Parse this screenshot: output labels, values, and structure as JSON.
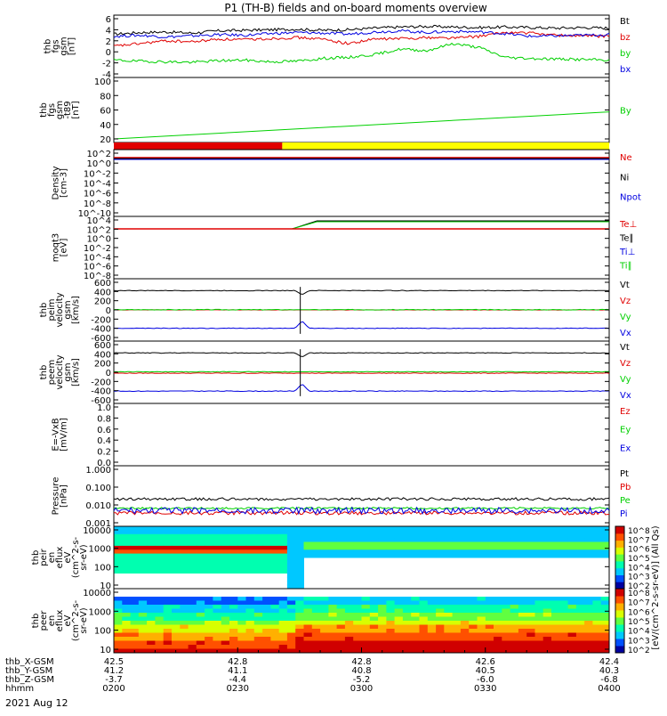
{
  "title": "P1 (TH-B) fields and on-board moments overview",
  "date": "2021 Aug 12",
  "coloring": {
    "black": "#000000",
    "red": "#e00000",
    "green": "#00d000",
    "blue": "#0000e0",
    "yellow": "#ffff00"
  },
  "chart_data": [
    {
      "type": "line",
      "ylabel_lines": [
        "thb",
        "fgs",
        "gsm",
        "[nT]"
      ],
      "ylim": [
        -4,
        6
      ],
      "yticks": [
        "6",
        "4",
        "2",
        "0",
        "-2",
        "-4"
      ],
      "series": [
        {
          "name": "Bt",
          "color": "#000000",
          "values": [
            3.2,
            3.5,
            3.6,
            3.4,
            3.8,
            3.9,
            4.0,
            4.1,
            3.9,
            4.0,
            4.3,
            4.5,
            4.6,
            4.5,
            4.4,
            4.5,
            4.4,
            4.3,
            4.4,
            4.3
          ]
        },
        {
          "name": "bz",
          "color": "#e00000",
          "values": [
            1.0,
            1.5,
            2.0,
            1.8,
            2.3,
            2.2,
            2.4,
            2.6,
            2.3,
            1.5,
            2.3,
            2.4,
            2.6,
            2.5,
            2.8,
            3.5,
            3.4,
            3.0,
            2.9,
            2.8
          ]
        },
        {
          "name": "by",
          "color": "#00d000",
          "values": [
            -1.5,
            -1.7,
            -1.8,
            -1.9,
            -1.6,
            -1.5,
            -1.8,
            -1.7,
            -1.2,
            -1.0,
            -0.5,
            0.5,
            0.2,
            1.5,
            0.8,
            -1.0,
            -1.2,
            -1.3,
            -1.4,
            -1.5
          ]
        },
        {
          "name": "bx",
          "color": "#0000e0",
          "values": [
            2.8,
            3.0,
            2.7,
            2.9,
            3.1,
            3.0,
            3.3,
            3.5,
            3.4,
            3.2,
            3.6,
            3.8,
            3.5,
            3.7,
            3.6,
            3.3,
            2.8,
            2.9,
            3.0,
            3.1
          ]
        }
      ]
    },
    {
      "type": "line",
      "ylabel_lines": [
        "thb",
        "fgs",
        "gsm",
        "-t89",
        "[nT]"
      ],
      "ylim": [
        10,
        100
      ],
      "yticks": [
        "100",
        "80",
        "60",
        "40",
        "20"
      ],
      "series": [
        {
          "name": "By",
          "color": "#00d000",
          "x": [
            0,
            1
          ],
          "values": [
            10,
            52
          ]
        }
      ]
    },
    {
      "type": "bar",
      "segments": [
        {
          "start": 0,
          "end": 0.34,
          "color": "#e00000"
        },
        {
          "start": 0.34,
          "end": 1,
          "color": "#ffff00"
        }
      ]
    },
    {
      "type": "line",
      "ylabel_lines": [
        "Density",
        "[cm-3]"
      ],
      "yticks": [
        "10^2",
        "10^0",
        "10^-2",
        "10^-4",
        "10^-6",
        "10^-8",
        "10^-10"
      ],
      "legend": [
        "Ne",
        "Ni",
        "Npot"
      ]
    },
    {
      "type": "line",
      "ylabel_lines": [
        "moqt3",
        "[eV]"
      ],
      "yticks": [
        "10^4",
        "10^2",
        "10^0",
        "10^-2",
        "10^-4",
        "10^-6",
        "10^-8"
      ],
      "legend": [
        "Te⊥",
        "Te∥",
        "Ti⊥",
        "Ti∥"
      ]
    },
    {
      "type": "line",
      "ylabel_lines": [
        "thb",
        "peim",
        "velocity",
        "gsm",
        "[km/s]"
      ],
      "ylim": [
        -600,
        600
      ],
      "yticks": [
        "600",
        "400",
        "200",
        "0",
        "-200",
        "-400",
        "-600"
      ],
      "series": [
        {
          "name": "Vt",
          "color": "#000000",
          "base": 420
        },
        {
          "name": "Vz",
          "color": "#e00000",
          "base": 0
        },
        {
          "name": "Vy",
          "color": "#00d000",
          "base": 5
        },
        {
          "name": "Vx",
          "color": "#0000e0",
          "base": -400
        }
      ]
    },
    {
      "type": "line",
      "ylabel_lines": [
        "thb",
        "peem",
        "velocity",
        "gsm",
        "[km/s]"
      ],
      "ylim": [
        -600,
        600
      ],
      "yticks": [
        "600",
        "400",
        "200",
        "0",
        "-200",
        "-400",
        "-600"
      ],
      "series": [
        {
          "name": "Vt",
          "color": "#000000",
          "base": 420
        },
        {
          "name": "Vz",
          "color": "#e00000",
          "base": -20
        },
        {
          "name": "Vy",
          "color": "#00d000",
          "base": 10
        },
        {
          "name": "Vx",
          "color": "#0000e0",
          "base": -410
        }
      ]
    },
    {
      "type": "line",
      "ylabel_lines": [
        "E=-VxB",
        "[mV/m]"
      ],
      "yticks": [
        "1.0",
        "0.8",
        "0.6",
        "0.4",
        "0.2",
        "0.0"
      ],
      "legend": [
        "Ez",
        "Ey",
        "Ex"
      ]
    },
    {
      "type": "line",
      "ylabel_lines": [
        "Pressure",
        "[nPa]"
      ],
      "yticks": [
        "1.000",
        "0.100",
        "0.010",
        "0.001"
      ],
      "legend": [
        "Pt",
        "Pb",
        "Pe",
        "Pi"
      ]
    },
    {
      "type": "heatmap",
      "ylabel_lines": [
        "thb",
        "peir",
        "en",
        "eflux",
        "eV",
        "(cm^2-s-",
        "sr-eV)"
      ],
      "yticks": [
        "10000",
        "1000",
        "100",
        "10"
      ]
    },
    {
      "type": "heatmap",
      "ylabel_lines": [
        "thb",
        "peer",
        "en",
        "eflux",
        "eV",
        "(cm^2-s-",
        "sr-eV)"
      ],
      "yticks": [
        "10000",
        "1000",
        "100",
        "10"
      ]
    }
  ],
  "colorbar": {
    "label": "[eV/(cm^2-s-sr-eV)] (All Qs)",
    "ticks": [
      "10^8",
      "10^7",
      "10^6",
      "10^5",
      "10^4",
      "10^3",
      "10^2"
    ]
  },
  "ephemeris": {
    "rows": [
      {
        "label": "thb_X-GSM",
        "values": [
          "42.5",
          "42.8",
          "42.8",
          "42.6",
          "42.4"
        ]
      },
      {
        "label": "thb_Y-GSM",
        "values": [
          "41.2",
          "41.1",
          "40.8",
          "40.5",
          "40.3"
        ]
      },
      {
        "label": "thb_Z-GSM",
        "values": [
          "-3.7",
          "-4.4",
          "-5.2",
          "-6.0",
          "-6.8"
        ]
      },
      {
        "label": "hhmm",
        "values": [
          "0200",
          "0230",
          "0300",
          "0330",
          "0400"
        ]
      }
    ]
  }
}
